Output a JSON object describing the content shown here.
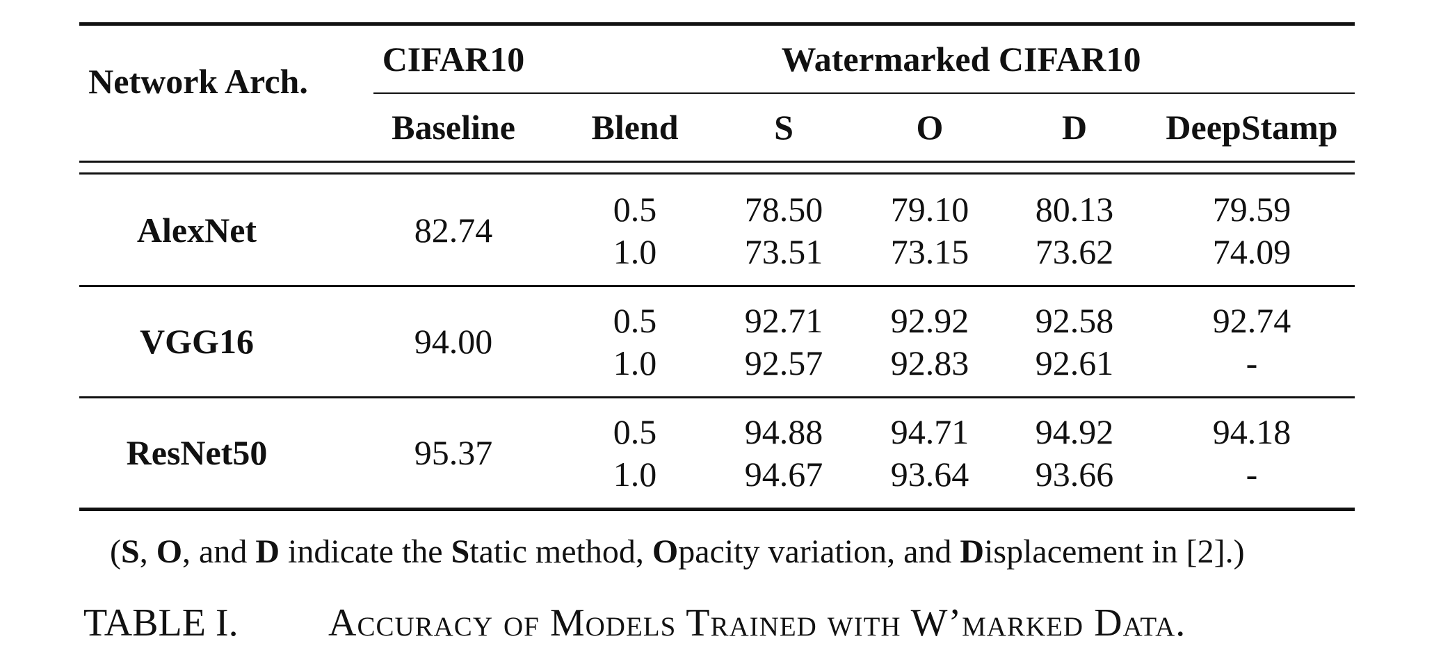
{
  "table": {
    "header": {
      "network_arch": "Network Arch.",
      "cifar10": "CIFAR10",
      "watermarked_cifar10": "Watermarked CIFAR10",
      "columns": [
        "Baseline",
        "Blend",
        "S",
        "O",
        "D",
        "DeepStamp"
      ]
    },
    "rows": [
      {
        "arch": "AlexNet",
        "baseline": "82.74",
        "blends": [
          {
            "blend": "0.5",
            "s": "78.50",
            "o": "79.10",
            "d": "80.13",
            "deepstamp": "79.59"
          },
          {
            "blend": "1.0",
            "s": "73.51",
            "o": "73.15",
            "d": "73.62",
            "deepstamp": "74.09"
          }
        ]
      },
      {
        "arch": "VGG16",
        "baseline": "94.00",
        "blends": [
          {
            "blend": "0.5",
            "s": "92.71",
            "o": "92.92",
            "d": "92.58",
            "deepstamp": "92.74"
          },
          {
            "blend": "1.0",
            "s": "92.57",
            "o": "92.83",
            "d": "92.61",
            "deepstamp": "-"
          }
        ]
      },
      {
        "arch": "ResNet50",
        "baseline": "95.37",
        "blends": [
          {
            "blend": "0.5",
            "s": "94.88",
            "o": "94.71",
            "d": "94.92",
            "deepstamp": "94.18"
          },
          {
            "blend": "1.0",
            "s": "94.67",
            "o": "93.64",
            "d": "93.66",
            "deepstamp": "-"
          }
        ]
      }
    ]
  },
  "note": {
    "open": "(",
    "s_letter": "S",
    "sep1": ", ",
    "o_letter": "O",
    "sep2": ", and ",
    "d_letter": "D",
    "mid1": " indicate the ",
    "static_S": "S",
    "static_rest": "tatic method, ",
    "opacity_O": "O",
    "opacity_rest": "pacity variation, and ",
    "displacement_D": "D",
    "displacement_rest": "isplacement in [2].)"
  },
  "caption": {
    "label": "TABLE I.",
    "title": "Accuracy of Models Trained with W’marked Data."
  }
}
